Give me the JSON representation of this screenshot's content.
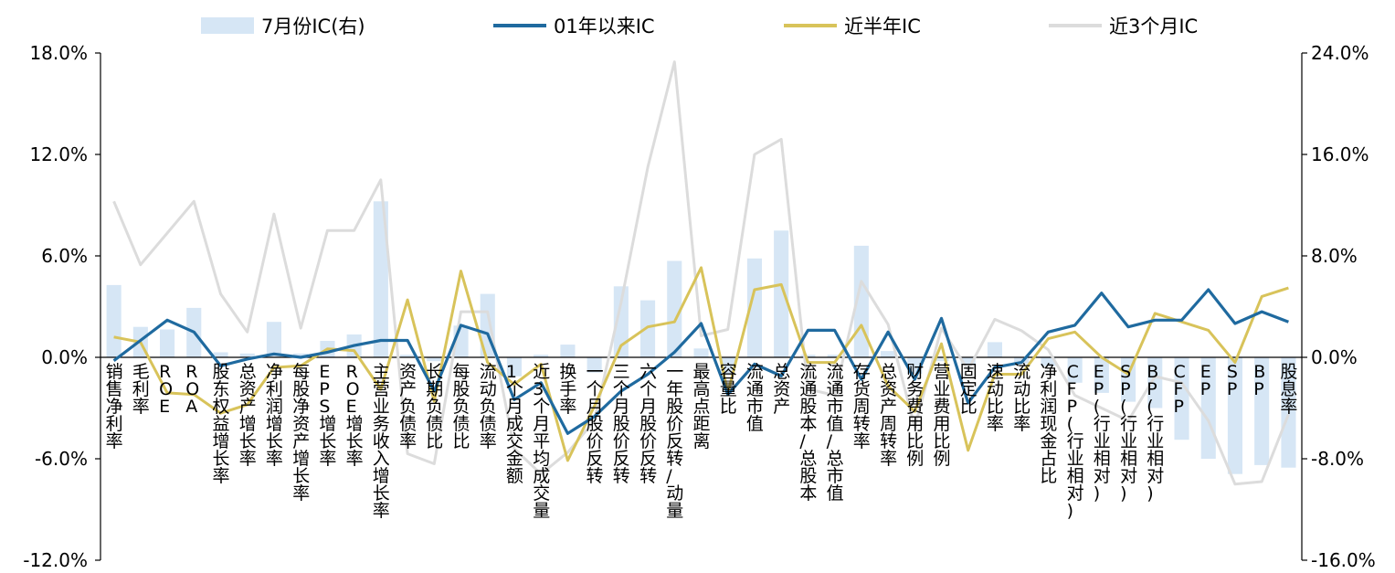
{
  "chart_data": {
    "type": "bar+line",
    "left_axis": {
      "ylim": [
        -12.0,
        18.0
      ],
      "ticks": [
        "18.0%",
        "12.0%",
        "6.0%",
        "0.0%",
        "-6.0%",
        "-12.0%"
      ],
      "tick_values": [
        18,
        12,
        6,
        0,
        -6,
        -12
      ]
    },
    "right_axis": {
      "ylim": [
        -16.0,
        24.0
      ],
      "ticks": [
        "24.0%",
        "16.0%",
        "8.0%",
        "0.0%",
        "-8.0%",
        "-16.0%"
      ],
      "tick_values": [
        24,
        16,
        8,
        0,
        -8,
        -16
      ]
    },
    "legend": {
      "placement": "top"
    },
    "colors": {
      "bars": "#d6e6f5",
      "ic01": "#1f6a9f",
      "half": "#d8c35a",
      "month3": "#dcdcdc"
    },
    "categories": [
      "销售净利率",
      "毛利率",
      "ROE",
      "ROA",
      "股东权益增长率",
      "总资产增长率",
      "净利润增长率",
      "每股净资产增长率",
      "EPS增长率",
      "ROE增长率",
      "主营业务收入增长率",
      "资产负债率",
      "长期负债比",
      "每股负债比",
      "流动负债率",
      "1个月成交金额",
      "近3个月平均成交量",
      "换手率",
      "一个月股价反转",
      "三个月股价反转",
      "六个月股价反转",
      "一年股价反转/动量",
      "最高点距离",
      "容量比",
      "流通市值",
      "总资产",
      "流通股本/总股本",
      "流通市值/总市值",
      "存货周转率",
      "总资产周转率",
      "财务费用比例",
      "营业费用比例",
      "固定比",
      "速动比率",
      "流动比率",
      "净利润现金占比",
      "CFP(行业相对)",
      "EP(行业相对)",
      "SP(行业相对)",
      "BP(行业相对)",
      "CFP",
      "EP",
      "SP",
      "BP",
      "股息率"
    ],
    "series": [
      {
        "name": "7月份IC(右)",
        "type": "bar",
        "axis": "right",
        "values": [
          5.7,
          2.4,
          2.2,
          3.9,
          0.4,
          0.3,
          2.8,
          0.3,
          1.3,
          1.8,
          12.3,
          0.2,
          -0.3,
          2.5,
          5.0,
          -1.5,
          0.2,
          1.0,
          -1.2,
          5.6,
          4.5,
          7.6,
          0.7,
          -1.4,
          7.8,
          10.0,
          0.2,
          0.2,
          8.8,
          0.5,
          -1.3,
          -0.3,
          -0.5,
          1.2,
          -0.5,
          -0.7,
          -2.0,
          -2.8,
          -3.5,
          -4.0,
          -6.5,
          -8.0,
          -9.2,
          -8.5,
          -8.7
        ]
      },
      {
        "name": "01年以来IC",
        "type": "line",
        "axis": "left",
        "values": [
          -0.2,
          1.0,
          2.2,
          1.5,
          -0.5,
          -0.1,
          0.2,
          0.0,
          0.3,
          0.7,
          1.0,
          1.0,
          -2.0,
          1.9,
          1.4,
          -2.5,
          -1.5,
          -4.5,
          -3.5,
          -2.0,
          -1.0,
          0.3,
          2.0,
          -2.2,
          -0.4,
          -1.1,
          1.6,
          1.6,
          -1.3,
          1.5,
          -1.3,
          2.3,
          -2.7,
          -0.6,
          -0.3,
          1.5,
          1.9,
          3.8,
          1.8,
          2.2,
          2.2,
          4.0,
          2.0,
          2.7,
          2.1
        ]
      },
      {
        "name": "近半年IC",
        "type": "line",
        "axis": "left",
        "values": [
          1.2,
          0.9,
          -2.1,
          -2.2,
          -3.3,
          -2.8,
          -0.6,
          -0.5,
          0.5,
          0.4,
          -1.9,
          3.4,
          -2.6,
          5.1,
          -0.3,
          -1.6,
          -0.4,
          -6.1,
          -2.9,
          0.7,
          1.8,
          2.1,
          5.3,
          -2.1,
          4.0,
          4.3,
          -0.3,
          -0.3,
          1.9,
          -1.7,
          -3.2,
          0.8,
          -5.5,
          -1.0,
          -1.0,
          1.1,
          1.5,
          0.0,
          -1.0,
          2.6,
          2.1,
          1.6,
          -0.3,
          3.6,
          4.1
        ]
      },
      {
        "name": "近3个月IC",
        "type": "line",
        "axis": "right",
        "values": [
          12.3,
          7.3,
          9.8,
          12.3,
          5.0,
          2.0,
          11.3,
          2.3,
          10.0,
          10.0,
          14.0,
          -7.6,
          -8.4,
          3.6,
          3.6,
          -7.2,
          -9.2,
          -7.5,
          -5.0,
          4.3,
          15.0,
          23.3,
          1.7,
          2.2,
          16.0,
          17.2,
          -2.5,
          -3.0,
          6.0,
          2.6,
          -5.5,
          2.3,
          -1.0,
          3.0,
          2.1,
          0.6,
          -3.0,
          -4.0,
          -5.0,
          -1.5,
          -2.0,
          -5.0,
          -10.0,
          -9.8,
          -4.5
        ]
      }
    ]
  }
}
